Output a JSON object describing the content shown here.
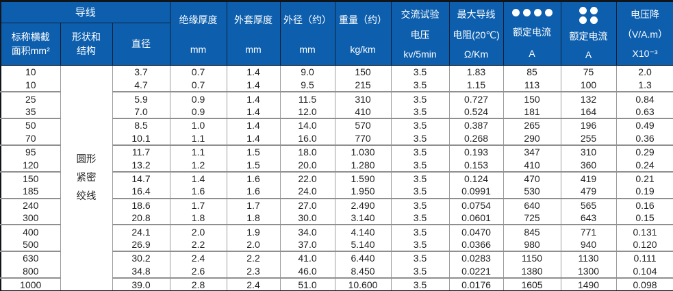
{
  "table": {
    "header": {
      "conductor_group": "导线",
      "col_area_line1": "标称横截",
      "col_area_line2": "面积mm²",
      "col_shape_line1": "形状和",
      "col_shape_line2": "结构",
      "col_diameter": "直径",
      "col_insulation_line1": "绝缘厚度",
      "col_insulation_unit": "mm",
      "col_sheath_line1": "外套厚度",
      "col_sheath_unit": "mm",
      "col_od_line1": "外径（约）",
      "col_od_unit": "mm",
      "col_weight_line1": "重量（约）",
      "col_weight_unit": "kg/km",
      "col_test_line1": "交流试验",
      "col_test_line2": "电压",
      "col_test_unit": "kv/5min",
      "col_resistance_line1": "最大导线",
      "col_resistance_line2": "电阻(20℃)",
      "col_resistance_unit": "Ω/Km",
      "col_current1_icon": "four-dots-row-icon",
      "col_current1_label": "额定电流",
      "col_current1_unit": "A",
      "col_current2_icon": "four-dots-grid-icon",
      "col_current2_label": "额定电流",
      "col_current2_unit": "A",
      "col_vdrop_line1": "电压降",
      "col_vdrop_line2": "（V/A.m）",
      "col_vdrop_line3": "X10⁻³"
    },
    "shape_cell_lines": [
      "圆形",
      "紧密",
      "绞线"
    ],
    "rows": [
      [
        "10",
        "3.7",
        "0.7",
        "1.4",
        "9.0",
        "150",
        "3.5",
        "1.83",
        "85",
        "75",
        "2.0"
      ],
      [
        "10",
        "4.7",
        "0.7",
        "1.4",
        "9.5",
        "215",
        "3.5",
        "1.15",
        "113",
        "100",
        "1.3"
      ],
      [
        "25",
        "5.9",
        "0.9",
        "1.4",
        "11.5",
        "310",
        "3.5",
        "0.727",
        "150",
        "132",
        "0.84"
      ],
      [
        "35",
        "7.0",
        "0.9",
        "1.4",
        "12.0",
        "410",
        "3.5",
        "0.524",
        "181",
        "164",
        "0.63"
      ],
      [
        "50",
        "8.5",
        "1.0",
        "1.4",
        "14.0",
        "570",
        "3.5",
        "0.387",
        "265",
        "196",
        "0.49"
      ],
      [
        "70",
        "10.1",
        "1.1",
        "1.4",
        "16.0",
        "770",
        "3.5",
        "0.268",
        "290",
        "255",
        "0.36"
      ],
      [
        "95",
        "11.7",
        "1.1",
        "1.5",
        "18.0",
        "1.030",
        "3.5",
        "0.193",
        "347",
        "310",
        "0.29"
      ],
      [
        "120",
        "13.2",
        "1.2",
        "1.5",
        "20.0",
        "1.280",
        "3.5",
        "0.153",
        "410",
        "360",
        "0.24"
      ],
      [
        "150",
        "14.7",
        "1.4",
        "1.6",
        "22.0",
        "1.590",
        "3.5",
        "0.124",
        "470",
        "419",
        "0.21"
      ],
      [
        "185",
        "16.4",
        "1.6",
        "1.6",
        "24.0",
        "1.950",
        "3.5",
        "0.0991",
        "530",
        "479",
        "0.19"
      ],
      [
        "240",
        "18.6",
        "1.7",
        "1.7",
        "27.0",
        "2.490",
        "3.5",
        "0.0754",
        "640",
        "565",
        "0.16"
      ],
      [
        "300",
        "20.8",
        "1.8",
        "1.8",
        "30.0",
        "3.140",
        "3.5",
        "0.0601",
        "725",
        "643",
        "0.15"
      ],
      [
        "400",
        "24.1",
        "2.0",
        "1.9",
        "34.0",
        "4.140",
        "3.5",
        "0.0470",
        "845",
        "771",
        "0.131"
      ],
      [
        "500",
        "26.9",
        "2.2",
        "2.0",
        "37.0",
        "5.140",
        "3.5",
        "0.0366",
        "980",
        "940",
        "0.120"
      ],
      [
        "630",
        "30.2",
        "2.4",
        "2.2",
        "41.0",
        "6.440",
        "3.5",
        "0.0283",
        "1150",
        "1130",
        "0.111"
      ],
      [
        "800",
        "34.8",
        "2.6",
        "2.3",
        "46.0",
        "8.450",
        "3.5",
        "0.0221",
        "1380",
        "1300",
        "0.104"
      ],
      [
        "1000",
        "39.0",
        "2.8",
        "2.4",
        "51.0",
        "10.600",
        "3.5",
        "0.0176",
        "1605",
        "1490",
        "0.098"
      ]
    ]
  },
  "colors": {
    "header_bg": "#0d5fae",
    "header_text": "#ffffff",
    "grid_line": "#9b9b9b",
    "group_line": "#8f8f8f",
    "outer_border": "#10151c",
    "body_text": "#222222"
  }
}
